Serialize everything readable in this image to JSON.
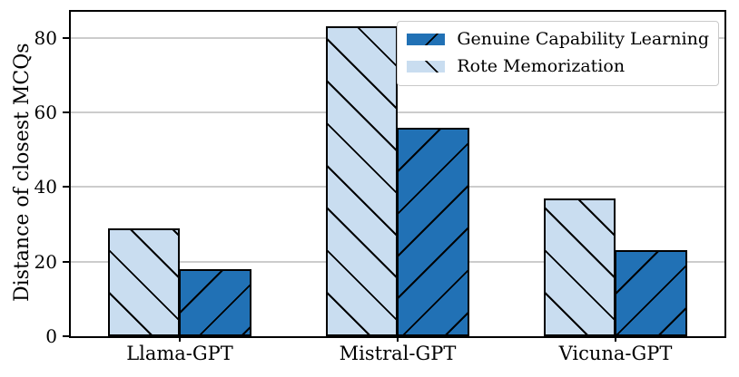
{
  "figure": {
    "background": "#ffffff"
  },
  "chart_data": {
    "type": "bar",
    "title": "",
    "xlabel": "",
    "ylabel": "Distance of closest MCQs",
    "categories": [
      "Llama-GPT",
      "Mistral-GPT",
      "Vicuna-GPT"
    ],
    "series": [
      {
        "name": "Genuine Capability Learning",
        "values": [
          18,
          56,
          23
        ],
        "color": "#2171b5",
        "hatch": "/"
      },
      {
        "name": "Rote Memorization",
        "values": [
          29,
          83,
          37
        ],
        "color": "#c9ddf0",
        "hatch": "\\"
      }
    ],
    "group_draw_order": [
      1,
      0
    ],
    "yticks": [
      0,
      20,
      40,
      60,
      80
    ],
    "ylim": [
      0,
      87
    ],
    "grid": "horizontal",
    "gridline_color": "#cccccc",
    "edge_color": "#000000",
    "legend": {
      "position": "upper right",
      "entries": [
        "Genuine Capability Learning",
        "Rote Memorization"
      ]
    }
  }
}
